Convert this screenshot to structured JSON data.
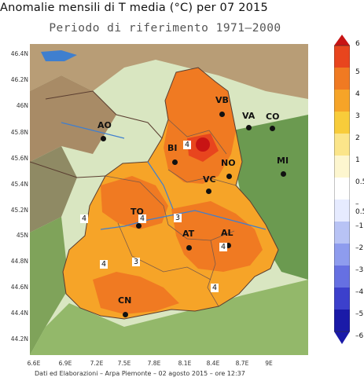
{
  "title": "Anomalie mensili di T media (°C) per 07 2015",
  "subtitle": "Periodo di riferimento 1971–2000",
  "footer": "Dati ed Elaborazioni – Arpa Piemonte – 02 agosto 2015 – ore 12:37",
  "lat_ticks": [
    "46.4N",
    "46.2N",
    "46N",
    "45.8N",
    "45.6N",
    "45.4N",
    "45.2N",
    "45N",
    "44.8N",
    "44.6N",
    "44.4N",
    "44.2N"
  ],
  "lon_ticks": [
    "6.6E",
    "6.9E",
    "7.2E",
    "7.5E",
    "7.8E",
    "8.1E",
    "8.4E",
    "8.7E",
    "9E"
  ],
  "legend_ticks": [
    "6",
    "5",
    "4",
    "3",
    "2",
    "1",
    "0.5",
    "–0.5",
    "–1",
    "–2",
    "–3",
    "–4",
    "–5",
    "–6"
  ],
  "legend_colors": [
    "#c81414",
    "#e8451e",
    "#f07a22",
    "#f6a428",
    "#f8cc3a",
    "#fbe58a",
    "#fdf6cf",
    "#ffffff",
    "#e6ebff",
    "#b8c3f5",
    "#8e9cee",
    "#6670e2",
    "#3c40cc",
    "#1a1aa8"
  ],
  "cities": [
    "VB",
    "VA",
    "CO",
    "AO",
    "BI",
    "NO",
    "MI",
    "VC",
    "TO",
    "AT",
    "AL",
    "CN"
  ],
  "contour_labels": [
    "4",
    "4",
    "4",
    "3",
    "4",
    "3",
    "4",
    "4",
    "4"
  ],
  "colors": {
    "far_bg": "#cfe3b2",
    "lombardia": "#6b9a50",
    "lake": "#3f7fcf",
    "outer": "#8a6a52"
  }
}
